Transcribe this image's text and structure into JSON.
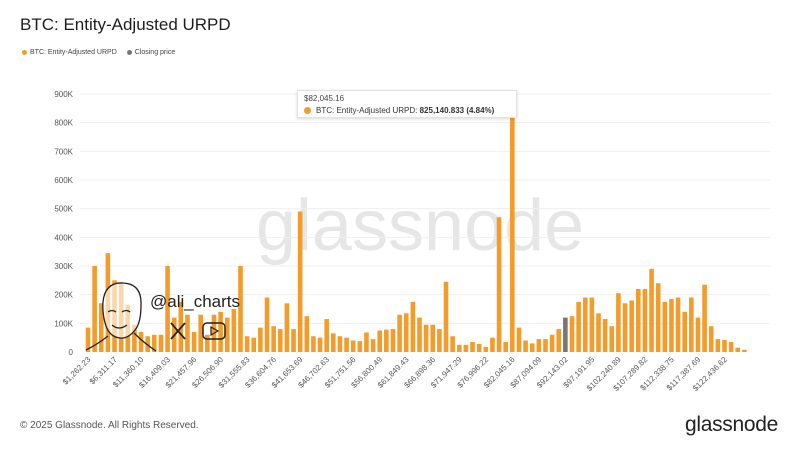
{
  "title": "BTC: Entity-Adjusted URPD",
  "legend": [
    {
      "label": "BTC: Entity-Adjusted URPD",
      "color": "#f39c2b"
    },
    {
      "label": "Closing price",
      "color": "#777777"
    }
  ],
  "tooltip": {
    "price": "$82,045.16",
    "series": "BTC: Entity-Adjusted URPD:",
    "value": "825,140.833 (4.84%)"
  },
  "watermark": "glassnode",
  "author": {
    "handle": "@ali_charts",
    "icons": [
      "x-logo-icon",
      "youtube-icon"
    ]
  },
  "footer": {
    "copyright": "© 2025 Glassnode. All Rights Reserved.",
    "logo": "glassnode"
  },
  "chart_data": {
    "type": "bar",
    "title": "BTC: Entity-Adjusted URPD",
    "ylim": [
      0,
      900000
    ],
    "y_ticks": [
      "0",
      "100K",
      "200K",
      "300K",
      "400K",
      "500K",
      "600K",
      "700K",
      "800K",
      "900K"
    ],
    "x_tick_labels": [
      "$1,262.23",
      "$6,311.17",
      "$11,360.10",
      "$16,409.03",
      "$21,457.96",
      "$26,506.90",
      "$31,555.83",
      "$36,604.76",
      "$41,653.69",
      "$46,702.63",
      "$51,751.56",
      "$56,800.49",
      "$61,849.43",
      "$66,898.36",
      "$71,947.29",
      "$76,996.22",
      "$82,045.16",
      "$87,094.09",
      "$92,143.02",
      "$97,191.95",
      "$102,240.89",
      "$107,289.82",
      "$112,338.75",
      "$117,387.69",
      "$122,436.62"
    ],
    "grid": true,
    "legend_position": "top-left",
    "bar_color": "#f39c2b",
    "closing_price_color": "#777777",
    "closing_price_index": 72,
    "highlight_index": 64,
    "values_thousands": [
      85,
      300,
      170,
      345,
      250,
      240,
      165,
      95,
      70,
      55,
      60,
      60,
      300,
      120,
      175,
      130,
      70,
      130,
      60,
      130,
      140,
      120,
      150,
      300,
      55,
      50,
      85,
      190,
      90,
      80,
      170,
      80,
      490,
      125,
      55,
      50,
      115,
      65,
      55,
      50,
      40,
      38,
      68,
      45,
      75,
      78,
      80,
      130,
      135,
      175,
      120,
      95,
      95,
      80,
      245,
      55,
      25,
      25,
      35,
      28,
      18,
      50,
      470,
      35,
      825,
      85,
      40,
      30,
      45,
      45,
      60,
      80,
      120,
      125,
      175,
      190,
      190,
      135,
      115,
      90,
      205,
      170,
      180,
      220,
      220,
      290,
      240,
      175,
      185,
      190,
      140,
      190,
      120,
      235,
      90,
      45,
      42,
      35,
      15,
      8
    ]
  }
}
